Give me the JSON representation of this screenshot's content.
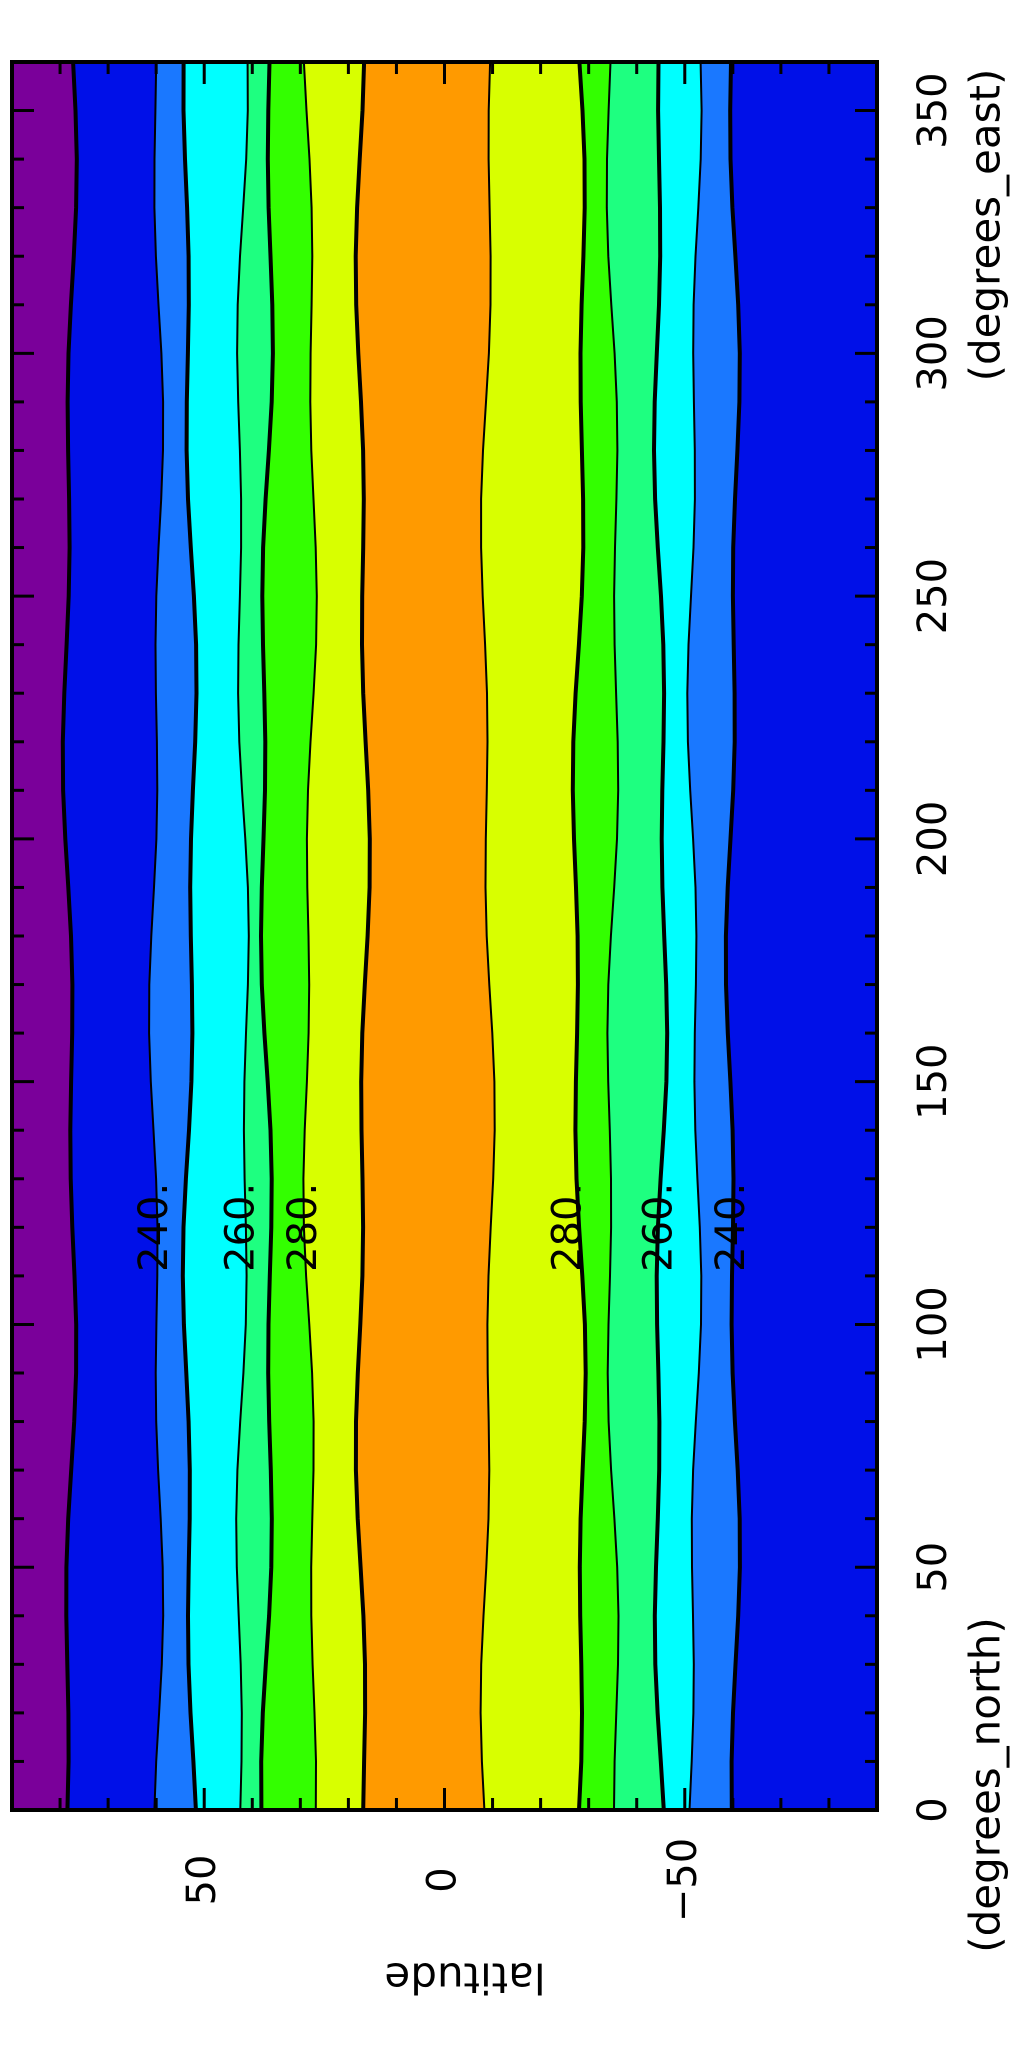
{
  "chart_data": {
    "type": "heatmap",
    "subtype": "filled-contour",
    "orientation": "rotated 90 degrees (page landscape)",
    "x_axis": {
      "label": "(degrees_east)",
      "range": [
        0,
        360
      ],
      "ticks": [
        "0",
        "50",
        "100",
        "150",
        "200",
        "250",
        "300",
        "350"
      ]
    },
    "y_axis": {
      "label": "latitude",
      "units_label": "(degrees_north)",
      "range": [
        -90,
        90
      ],
      "ticks": [
        "50",
        "0",
        "−50"
      ]
    },
    "contour_levels": [
      220,
      230,
      240,
      250,
      260,
      270,
      280,
      290
    ],
    "colors": {
      "lt_220": "#7a009a",
      "220_230": "#0010e8",
      "230_240": "#1a78ff",
      "240_250": "#00ffff",
      "250_260": "#1eff80",
      "260_270": "#33ff00",
      "270_280": "#d8ff00",
      "280_290": "#ff9a00"
    },
    "bands_north_deg": [
      {
        "range": "lt_220",
        "lat_start": 90,
        "lat_end": 78
      },
      {
        "range": "220_230",
        "lat_start": 78,
        "lat_end": 60
      },
      {
        "range": "230_240",
        "lat_start": 60,
        "lat_end": 53
      },
      {
        "range": "240_250",
        "lat_start": 53,
        "lat_end": 42
      },
      {
        "range": "250_260",
        "lat_start": 42,
        "lat_end": 37
      },
      {
        "range": "260_270",
        "lat_start": 37,
        "lat_end": 28
      },
      {
        "range": "270_280",
        "lat_start": 28,
        "lat_end": 17
      },
      {
        "range": "280_290",
        "lat_start": 17,
        "lat_end": -9
      }
    ],
    "bands_south_deg": [
      {
        "range": "270_280",
        "lat_start": -9,
        "lat_end": -28
      },
      {
        "range": "260_270",
        "lat_start": -28,
        "lat_end": -35
      },
      {
        "range": "250_260",
        "lat_start": -35,
        "lat_end": -45
      },
      {
        "range": "240_250",
        "lat_start": -45,
        "lat_end": -52
      },
      {
        "range": "230_240",
        "lat_start": -52,
        "lat_end": -60
      },
      {
        "range": "220_230",
        "lat_start": -60,
        "lat_end": -90
      }
    ],
    "contour_labels": [
      {
        "text": "240.",
        "lon": 120,
        "lat": 60
      },
      {
        "text": "260.",
        "lon": 120,
        "lat": 42
      },
      {
        "text": "280.",
        "lon": 120,
        "lat": 29
      },
      {
        "text": "280.",
        "lon": 120,
        "lat": -26
      },
      {
        "text": "260.",
        "lon": 120,
        "lat": -45
      },
      {
        "text": "240.",
        "lon": 120,
        "lat": -60
      }
    ]
  }
}
